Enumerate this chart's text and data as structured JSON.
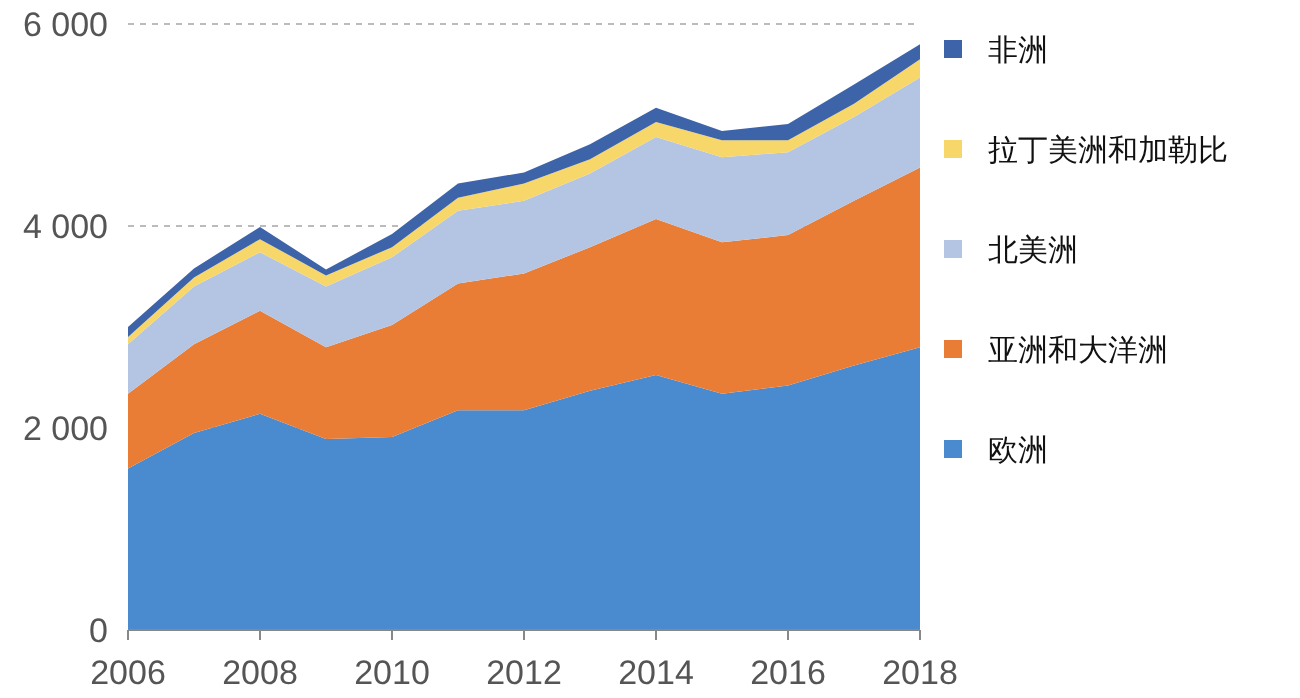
{
  "chart_data": {
    "type": "area",
    "stacked": true,
    "x": [
      2006,
      2007,
      2008,
      2009,
      2010,
      2011,
      2012,
      2013,
      2014,
      2015,
      2016,
      2017,
      2018
    ],
    "series": [
      {
        "name": "欧洲",
        "color": "#4a8bd0",
        "values": [
          1600,
          1950,
          2140,
          1890,
          1910,
          2175,
          2175,
          2370,
          2525,
          2340,
          2420,
          2620,
          2800
        ]
      },
      {
        "name": "亚洲和大洋洲",
        "color": "#ea7d35",
        "values": [
          740,
          880,
          1020,
          910,
          1110,
          1255,
          1355,
          1420,
          1545,
          1500,
          1490,
          1630,
          1780
        ]
      },
      {
        "name": "北美洲",
        "color": "#b4c5e3",
        "values": [
          490,
          570,
          580,
          600,
          670,
          720,
          720,
          730,
          810,
          840,
          820,
          830,
          890
        ]
      },
      {
        "name": "拉丁美洲和加勒比",
        "color": "#f7d66a",
        "values": [
          70,
          90,
          130,
          110,
          100,
          130,
          170,
          140,
          150,
          170,
          120,
          130,
          180
        ]
      },
      {
        "name": "非洲",
        "color": "#3d63a8",
        "values": [
          100,
          90,
          120,
          60,
          130,
          140,
          110,
          150,
          140,
          90,
          160,
          190,
          150
        ]
      }
    ],
    "xlim": [
      2006,
      2018
    ],
    "xticks": [
      2006,
      2008,
      2010,
      2012,
      2014,
      2016,
      2018
    ],
    "ylim": [
      0,
      6000
    ],
    "yticks": [
      0,
      {
        "value": 2000,
        "label": "2 000"
      },
      {
        "value": 4000,
        "label": "4 000"
      },
      {
        "value": 6000,
        "label": "6 000"
      }
    ],
    "grid": "y",
    "legend": "right"
  }
}
